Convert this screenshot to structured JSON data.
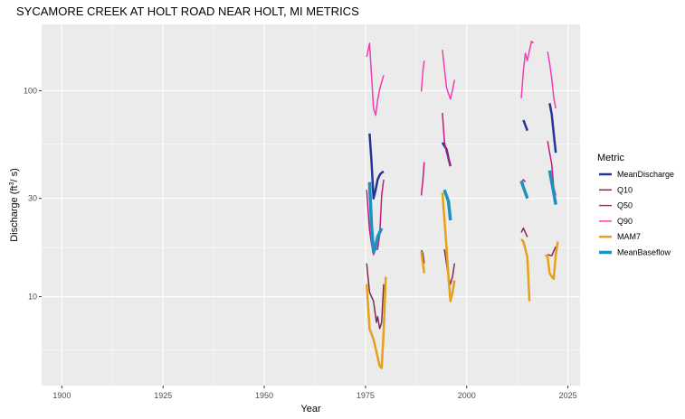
{
  "chart_data": {
    "type": "line",
    "title": "SYCAMORE CREEK AT HOLT ROAD NEAR HOLT, MI  METRICS",
    "xlabel": "Year",
    "ylabel_prefix": "Discharge (ft",
    "ylabel_sup": "3",
    "ylabel_suffix": "/ s)",
    "x_scale": "linear",
    "y_scale": "log",
    "xlim": [
      1895,
      2028
    ],
    "ylim": [
      3.7,
      210
    ],
    "x_ticks": [
      1900,
      1925,
      1950,
      1975,
      2000,
      2025
    ],
    "x_minor_ticks": [
      1912.5,
      1937.5,
      1962.5,
      1987.5,
      2012.5
    ],
    "y_ticks": [
      10,
      30,
      100
    ],
    "y_tick_labels": [
      "10",
      "30",
      "100"
    ],
    "y_minor_ticks": [
      5.5,
      17.3,
      55
    ],
    "grid": true,
    "panel_background": "#ebebeb",
    "grid_color": "#ffffff",
    "legend": {
      "title": "Metric",
      "position": "right"
    },
    "series": [
      {
        "name": "MeanDischarge",
        "color": "#253494",
        "width": 2.5,
        "segments": [
          [
            [
              1976.0,
              62
            ],
            [
              1976.5,
              45
            ],
            [
              1977.0,
              30
            ],
            [
              1977.5,
              33
            ],
            [
              1978.0,
              37
            ],
            [
              1978.5,
              39
            ],
            [
              1979.0,
              40
            ],
            [
              1979.5,
              40.5
            ]
          ],
          [
            [
              1994.0,
              56
            ],
            [
              1995.0,
              52
            ],
            [
              1995.5,
              47
            ],
            [
              1996.0,
              43
            ]
          ],
          [
            [
              2014.0,
              72
            ],
            [
              2014.5,
              68
            ],
            [
              2015.0,
              64
            ]
          ],
          [
            [
              2020.5,
              87
            ],
            [
              2021.0,
              77
            ],
            [
              2021.5,
              62
            ],
            [
              2022.0,
              50
            ]
          ]
        ]
      },
      {
        "name": "Q10",
        "color": "#7a2c5a",
        "width": 1.5,
        "segments": [
          [
            [
              1975.3,
              14.5
            ],
            [
              1976.0,
              10.5
            ],
            [
              1977.0,
              9.5
            ],
            [
              1977.7,
              7.5
            ],
            [
              1978.0,
              8.0
            ],
            [
              1978.5,
              7.0
            ],
            [
              1979.0,
              7.5
            ],
            [
              1979.5,
              11.5
            ]
          ],
          [
            [
              1988.8,
              16.8
            ],
            [
              1989.2,
              16.2
            ],
            [
              1989.5,
              14.5
            ]
          ],
          [
            [
              1994.5,
              17.0
            ],
            [
              1995.5,
              12.5
            ],
            [
              1996.0,
              11.5
            ],
            [
              1996.5,
              12.5
            ],
            [
              1997.0,
              14.5
            ]
          ],
          [
            [
              2013.5,
              20.5
            ],
            [
              2014.0,
              21.5
            ],
            [
              2014.5,
              20.5
            ],
            [
              2015.0,
              19.5
            ]
          ],
          [
            [
              2020.0,
              16.0
            ],
            [
              2021.0,
              15.8
            ],
            [
              2022.0,
              17.5
            ]
          ]
        ]
      },
      {
        "name": "Q50",
        "color": "#c51b7d",
        "width": 1.5,
        "segments": [
          [
            [
              1975.3,
              33
            ],
            [
              1976.0,
              21
            ],
            [
              1976.5,
              18
            ],
            [
              1977.0,
              16
            ],
            [
              1977.5,
              17
            ],
            [
              1978.0,
              17
            ],
            [
              1978.5,
              20
            ],
            [
              1979.0,
              31
            ],
            [
              1979.5,
              37
            ]
          ],
          [
            [
              1988.8,
              31
            ],
            [
              1989.2,
              37
            ],
            [
              1989.5,
              45
            ]
          ],
          [
            [
              1994.0,
              78
            ],
            [
              1994.5,
              57
            ],
            [
              1995.0,
              50
            ],
            [
              1995.5,
              47
            ],
            [
              1996.0,
              43
            ]
          ],
          [
            [
              2013.5,
              36
            ],
            [
              2014.0,
              37
            ],
            [
              2014.5,
              36
            ]
          ],
          [
            [
              2020.0,
              57
            ],
            [
              2020.5,
              50
            ],
            [
              2021.0,
              44
            ],
            [
              2021.5,
              34
            ],
            [
              2022.0,
              31
            ]
          ]
        ]
      },
      {
        "name": "Q90",
        "color": "#f23db5",
        "width": 1.5,
        "segments": [
          [
            [
              1975.3,
              146
            ],
            [
              1976.0,
              170
            ],
            [
              1977.0,
              82
            ],
            [
              1977.5,
              76
            ],
            [
              1978.0,
              90
            ],
            [
              1978.5,
              102
            ],
            [
              1979.0,
              110
            ],
            [
              1979.5,
              119
            ]
          ],
          [
            [
              1988.8,
              99
            ],
            [
              1989.2,
              125
            ],
            [
              1989.5,
              140
            ]
          ],
          [
            [
              1994.0,
              158
            ],
            [
              1995.0,
              104
            ],
            [
              1995.5,
              97
            ],
            [
              1996.0,
              91
            ],
            [
              1996.5,
              101
            ],
            [
              1997.0,
              113
            ]
          ],
          [
            [
              2013.5,
              92
            ],
            [
              2014.0,
              125
            ],
            [
              2014.5,
              152
            ],
            [
              2015.0,
              140
            ],
            [
              2016.0,
              174
            ],
            [
              2016.5,
              170
            ]
          ],
          [
            [
              2020.0,
              155
            ],
            [
              2020.5,
              136
            ],
            [
              2021.0,
              115
            ],
            [
              2021.5,
              93
            ],
            [
              2022.0,
              82
            ]
          ]
        ]
      },
      {
        "name": "MAM7",
        "color": "#e6a117",
        "width": 2.5,
        "segments": [
          [
            [
              1975.3,
              11.5
            ],
            [
              1976.0,
              7.0
            ],
            [
              1977.0,
              6.2
            ],
            [
              1978.0,
              5.1
            ],
            [
              1978.5,
              4.6
            ],
            [
              1979.0,
              4.5
            ],
            [
              1979.5,
              6.8
            ],
            [
              1980.0,
              12.5
            ]
          ],
          [
            [
              1988.8,
              16.5
            ],
            [
              1989.2,
              14.5
            ],
            [
              1989.5,
              13.0
            ]
          ],
          [
            [
              1994.0,
              32
            ],
            [
              1995.0,
              17.5
            ],
            [
              1995.5,
              12.5
            ],
            [
              1996.0,
              9.5
            ],
            [
              1996.5,
              10.5
            ],
            [
              1997.0,
              12.0
            ]
          ],
          [
            [
              2013.5,
              19.0
            ],
            [
              2014.0,
              18.5
            ],
            [
              2014.5,
              17.0
            ],
            [
              2015.0,
              15.5
            ],
            [
              2015.5,
              9.5
            ]
          ],
          [
            [
              2019.5,
              16.0
            ],
            [
              2020.0,
              15.5
            ],
            [
              2020.5,
              13.0
            ],
            [
              2021.0,
              12.5
            ],
            [
              2021.5,
              12.2
            ],
            [
              2022.0,
              16.0
            ],
            [
              2022.5,
              18.5
            ]
          ]
        ]
      },
      {
        "name": "MeanBaseflow",
        "color": "#1d91c0",
        "width": 3.5,
        "segments": [
          [
            [
              1976.0,
              36
            ],
            [
              1976.5,
              22
            ],
            [
              1977.0,
              16.5
            ],
            [
              1977.5,
              17.5
            ],
            [
              1978.0,
              19.5
            ],
            [
              1978.5,
              20.5
            ],
            [
              1979.0,
              21.5
            ]
          ],
          [
            [
              1994.5,
              33
            ],
            [
              1995.5,
              29
            ],
            [
              1996.0,
              23.5
            ]
          ],
          [
            [
              2013.5,
              36.5
            ],
            [
              2014.0,
              34
            ],
            [
              2014.5,
              32
            ],
            [
              2015.0,
              30
            ]
          ],
          [
            [
              2020.5,
              41
            ],
            [
              2021.0,
              36
            ],
            [
              2021.5,
              32
            ],
            [
              2022.0,
              28
            ]
          ]
        ]
      }
    ]
  }
}
